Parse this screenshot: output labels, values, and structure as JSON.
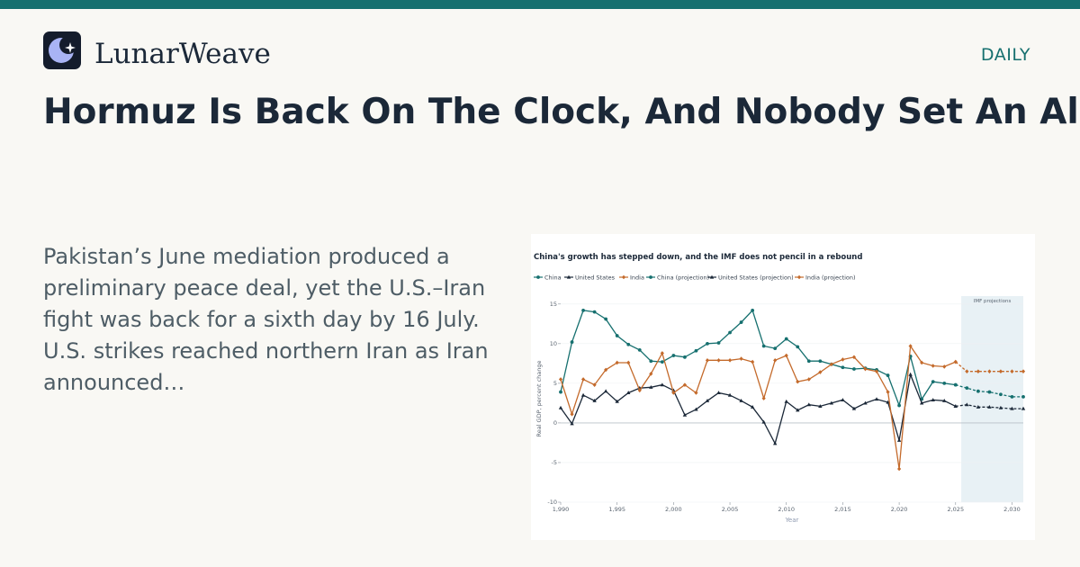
{
  "brand": {
    "name": "LunarWeave",
    "icon": "moon-star-icon"
  },
  "section": "DAILY",
  "headline": "Hormuz Is Back On The Clock, And Nobody Set An Alarm",
  "excerpt": "Pakistan’s June mediation produced a preliminary peace deal, yet the U.S.–Iran fight was back for a sixth day by 16 July. U.S. strikes reached northern Iran as Iran announced…",
  "colors": {
    "accent": "#16706f",
    "china": "#16706f",
    "us": "#1b2838",
    "india": "#c46a2b",
    "projection_band": "#e8f1f5"
  },
  "chart_data": {
    "type": "line",
    "title": "China's growth has stepped down, and the IMF does not pencil in a rebound",
    "xlabel": "Year",
    "ylabel": "Real GDP, percent change",
    "xlim": [
      1990,
      2031
    ],
    "ylim": [
      -10,
      16
    ],
    "xticks": [
      1990,
      1995,
      2000,
      2005,
      2010,
      2015,
      2020,
      2025,
      2030
    ],
    "xtick_labels": [
      "1,990",
      "1,995",
      "2,000",
      "2,005",
      "2,010",
      "2,015",
      "2,020",
      "2,025",
      "2,030"
    ],
    "yticks": [
      -10,
      -5,
      0,
      5,
      10,
      15
    ],
    "grid": true,
    "legend_position": "top-left",
    "shaded_region": {
      "x": [
        2025.5,
        2031
      ],
      "label": "IMF projections"
    },
    "series": [
      {
        "name": "China",
        "color": "#16706f",
        "marker": "circle",
        "dashed": false,
        "x": [
          1990,
          1991,
          1992,
          1993,
          1994,
          1995,
          1996,
          1997,
          1998,
          1999,
          2000,
          2001,
          2002,
          2003,
          2004,
          2005,
          2006,
          2007,
          2008,
          2009,
          2010,
          2011,
          2012,
          2013,
          2014,
          2015,
          2016,
          2017,
          2018,
          2019,
          2020,
          2021,
          2022,
          2023,
          2024,
          2025
        ],
        "y": [
          3.9,
          10.2,
          14.2,
          14.0,
          13.1,
          11.0,
          9.9,
          9.2,
          7.8,
          7.7,
          8.5,
          8.3,
          9.1,
          10.0,
          10.1,
          11.4,
          12.7,
          14.2,
          9.7,
          9.4,
          10.6,
          9.6,
          7.8,
          7.8,
          7.4,
          7.0,
          6.8,
          6.9,
          6.7,
          6.0,
          2.2,
          8.4,
          3.0,
          5.2,
          5.0,
          4.8
        ]
      },
      {
        "name": "United States",
        "color": "#1b2838",
        "marker": "triangle",
        "dashed": false,
        "x": [
          1990,
          1991,
          1992,
          1993,
          1994,
          1995,
          1996,
          1997,
          1998,
          1999,
          2000,
          2001,
          2002,
          2003,
          2004,
          2005,
          2006,
          2007,
          2008,
          2009,
          2010,
          2011,
          2012,
          2013,
          2014,
          2015,
          2016,
          2017,
          2018,
          2019,
          2020,
          2021,
          2022,
          2023,
          2024,
          2025
        ],
        "y": [
          1.9,
          -0.1,
          3.5,
          2.8,
          4.0,
          2.7,
          3.8,
          4.4,
          4.5,
          4.8,
          4.1,
          1.0,
          1.7,
          2.8,
          3.8,
          3.5,
          2.8,
          2.0,
          0.1,
          -2.6,
          2.7,
          1.6,
          2.3,
          2.1,
          2.5,
          2.9,
          1.8,
          2.5,
          3.0,
          2.6,
          -2.2,
          6.1,
          2.5,
          2.9,
          2.8,
          2.1
        ]
      },
      {
        "name": "India",
        "color": "#c46a2b",
        "marker": "diamond",
        "dashed": false,
        "x": [
          1990,
          1991,
          1992,
          1993,
          1994,
          1995,
          1996,
          1997,
          1998,
          1999,
          2000,
          2001,
          2002,
          2003,
          2004,
          2005,
          2006,
          2007,
          2008,
          2009,
          2010,
          2011,
          2012,
          2013,
          2014,
          2015,
          2016,
          2017,
          2018,
          2019,
          2020,
          2021,
          2022,
          2023,
          2024,
          2025
        ],
        "y": [
          5.5,
          1.1,
          5.5,
          4.8,
          6.7,
          7.6,
          7.6,
          4.1,
          6.2,
          8.8,
          3.8,
          4.8,
          3.8,
          7.9,
          7.9,
          7.9,
          8.1,
          7.7,
          3.1,
          7.9,
          8.5,
          5.2,
          5.5,
          6.4,
          7.4,
          8.0,
          8.3,
          6.8,
          6.5,
          3.9,
          -5.8,
          9.7,
          7.6,
          7.2,
          7.1,
          7.7
        ]
      },
      {
        "name": "China (projection)",
        "color": "#16706f",
        "marker": "circle",
        "dashed": true,
        "x": [
          2025,
          2026,
          2027,
          2028,
          2029,
          2030,
          2031
        ],
        "y": [
          4.8,
          4.4,
          4.0,
          3.9,
          3.6,
          3.3,
          3.3
        ]
      },
      {
        "name": "United States (projection)",
        "color": "#1b2838",
        "marker": "triangle",
        "dashed": true,
        "x": [
          2025,
          2026,
          2027,
          2028,
          2029,
          2030,
          2031
        ],
        "y": [
          2.1,
          2.3,
          2.0,
          2.0,
          1.9,
          1.8,
          1.8
        ]
      },
      {
        "name": "India (projection)",
        "color": "#c46a2b",
        "marker": "diamond",
        "dashed": true,
        "x": [
          2025,
          2026,
          2027,
          2028,
          2029,
          2030,
          2031
        ],
        "y": [
          7.7,
          6.5,
          6.5,
          6.5,
          6.5,
          6.5,
          6.5
        ]
      }
    ]
  }
}
